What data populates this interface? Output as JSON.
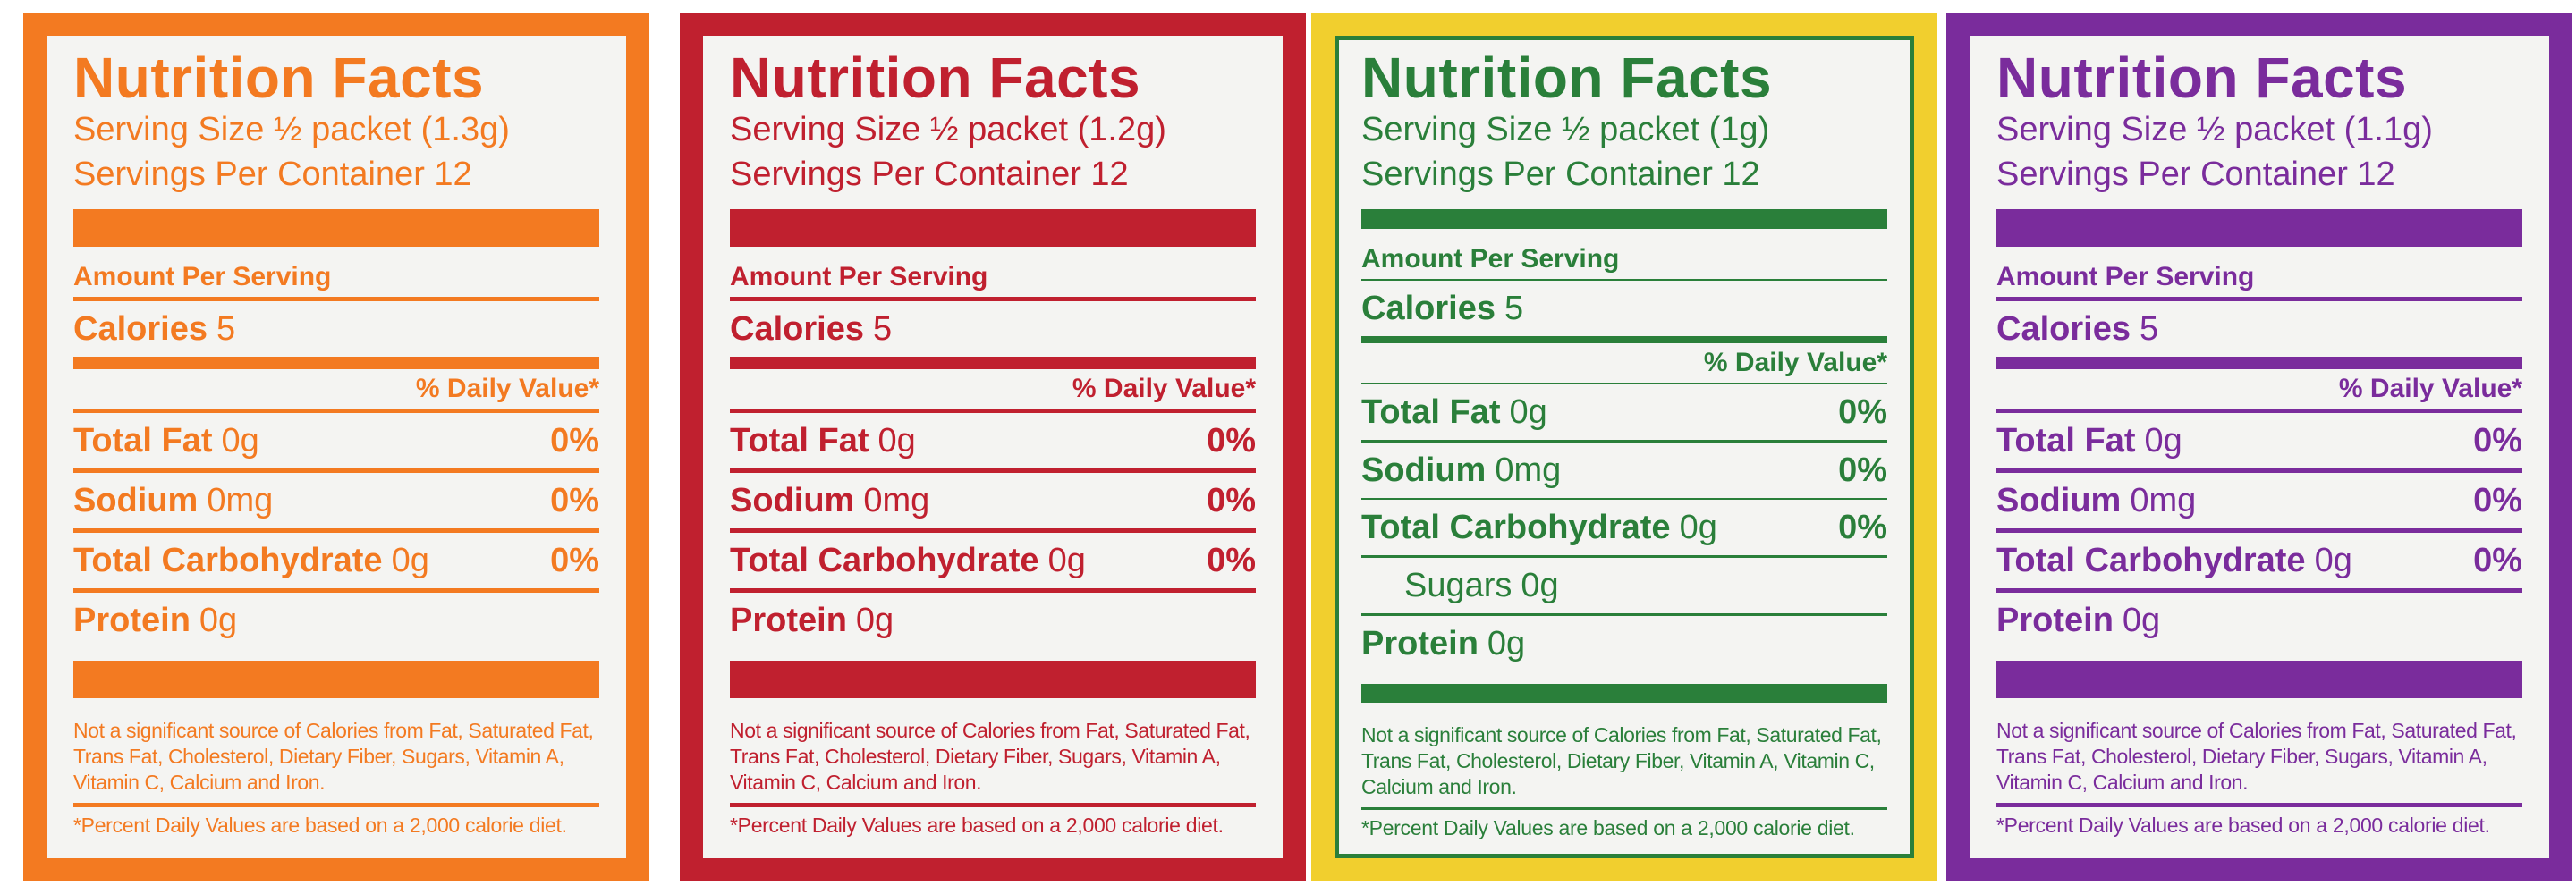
{
  "labels": [
    {
      "color": "#f37a21",
      "border": "#f37a21",
      "title": "Nutrition Facts",
      "serving_size": "Serving Size ½ packet (1.3g)",
      "servings": "Servings Per Container 12",
      "amount_per_serving": "Amount Per Serving",
      "calories_name": "Calories",
      "calories_value": "5",
      "dv_header": "% Daily Value*",
      "rows": [
        {
          "name": "Total Fat",
          "amount": "0g",
          "dv": "0%"
        },
        {
          "name": "Sodium",
          "amount": "0mg",
          "dv": "0%"
        },
        {
          "name": "Total Carbohydrate",
          "amount": "0g",
          "dv": "0%"
        },
        {
          "name": "Protein",
          "amount": "0g"
        }
      ],
      "footnote": "Not a significant source of Calories from Fat, Saturated Fat, Trans Fat, Cholesterol, Dietary Fiber, Sugars, Vitamin A, Vitamin C, Calcium and Iron.",
      "footer": "*Percent Daily Values are based on a 2,000 calorie diet."
    },
    {
      "color": "#c0202f",
      "border": "#c0202f",
      "title": "Nutrition Facts",
      "serving_size": "Serving Size ½ packet (1.2g)",
      "servings": "Servings Per Container 12",
      "amount_per_serving": "Amount Per Serving",
      "calories_name": "Calories",
      "calories_value": "5",
      "dv_header": "% Daily Value*",
      "rows": [
        {
          "name": "Total Fat",
          "amount": "0g",
          "dv": "0%"
        },
        {
          "name": "Sodium",
          "amount": "0mg",
          "dv": "0%"
        },
        {
          "name": "Total Carbohydrate",
          "amount": "0g",
          "dv": "0%"
        },
        {
          "name": "Protein",
          "amount": "0g"
        }
      ],
      "footnote": "Not a significant source of Calories from Fat, Saturated Fat, Trans Fat, Cholesterol, Dietary Fiber, Sugars, Vitamin A, Vitamin C, Calcium and Iron.",
      "footer": "*Percent Daily Values are based on a 2,000 calorie diet."
    },
    {
      "color": "#2a7f3a",
      "border": "#f1cf2e",
      "title": "Nutrition Facts",
      "serving_size": "Serving Size ½ packet (1g)",
      "servings": "Servings Per Container 12",
      "amount_per_serving": "Amount Per Serving",
      "calories_name": "Calories",
      "calories_value": "5",
      "dv_header": "% Daily Value*",
      "rows": [
        {
          "name": "Total Fat",
          "amount": "0g",
          "dv": "0%"
        },
        {
          "name": "Sodium",
          "amount": "0mg",
          "dv": "0%"
        },
        {
          "name": "Total Carbohydrate",
          "amount": "0g",
          "dv": "0%"
        },
        {
          "name": "Sugars",
          "amount": "0g",
          "sub": true
        },
        {
          "name": "Protein",
          "amount": "0g"
        }
      ],
      "footnote": "Not a significant source of Calories from Fat, Saturated Fat, Trans Fat, Cholesterol, Dietary Fiber, Vitamin A, Vitamin C, Calcium and Iron.",
      "footer": "*Percent Daily Values are based on a 2,000 calorie diet."
    },
    {
      "color": "#7a2c9c",
      "border": "#7a2c9c",
      "title": "Nutrition Facts",
      "serving_size": "Serving Size ½ packet (1.1g)",
      "servings": "Servings Per Container 12",
      "amount_per_serving": "Amount Per Serving",
      "calories_name": "Calories",
      "calories_value": "5",
      "dv_header": "% Daily Value*",
      "rows": [
        {
          "name": "Total Fat",
          "amount": "0g",
          "dv": "0%"
        },
        {
          "name": "Sodium",
          "amount": "0mg",
          "dv": "0%"
        },
        {
          "name": "Total Carbohydrate",
          "amount": "0g",
          "dv": "0%"
        },
        {
          "name": "Protein",
          "amount": "0g"
        }
      ],
      "footnote": "Not a significant source of Calories from Fat, Saturated Fat, Trans Fat, Cholesterol, Dietary Fiber, Sugars, Vitamin A, Vitamin C, Calcium and Iron.",
      "footer": "*Percent Daily Values are based on a 2,000 calorie diet."
    }
  ]
}
